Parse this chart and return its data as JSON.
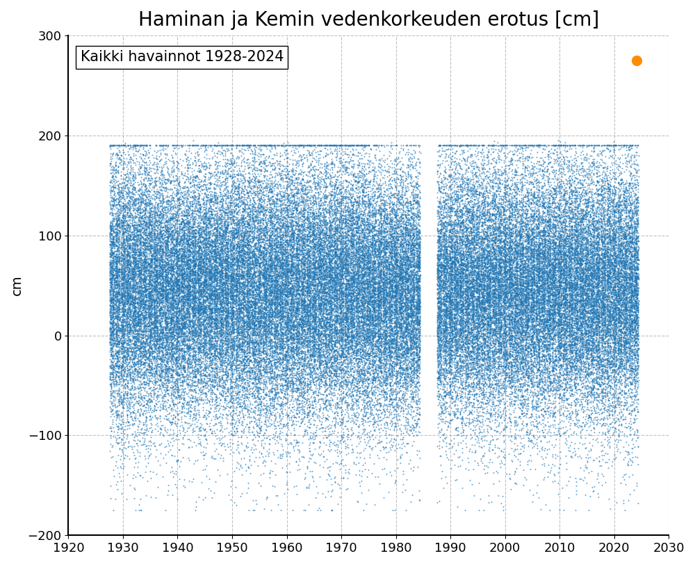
{
  "title": "Haminan ja Kemin vedenkorkeuden erotus [cm]",
  "ylabel": "cm",
  "xlabel": "",
  "annotation_text": "Kaikki havainnot 1928-2024",
  "xlim": [
    1920,
    2030
  ],
  "ylim": [
    -200,
    300
  ],
  "xticks": [
    1920,
    1930,
    1940,
    1950,
    1960,
    1970,
    1980,
    1990,
    2000,
    2010,
    2020,
    2030
  ],
  "yticks": [
    -200,
    -100,
    0,
    100,
    200,
    300
  ],
  "dot_color": "#2076b4",
  "highlight_color": "#ff8c00",
  "highlight_x": 2024.1,
  "highlight_y": 275,
  "dot_size": 2,
  "highlight_size": 120,
  "seed": 42,
  "year_start": 1928,
  "year_end": 2024,
  "gap_start": 1985,
  "gap_end": 1987,
  "title_fontsize": 20,
  "annotation_fontsize": 15,
  "tick_fontsize": 13,
  "ylabel_fontsize": 14
}
